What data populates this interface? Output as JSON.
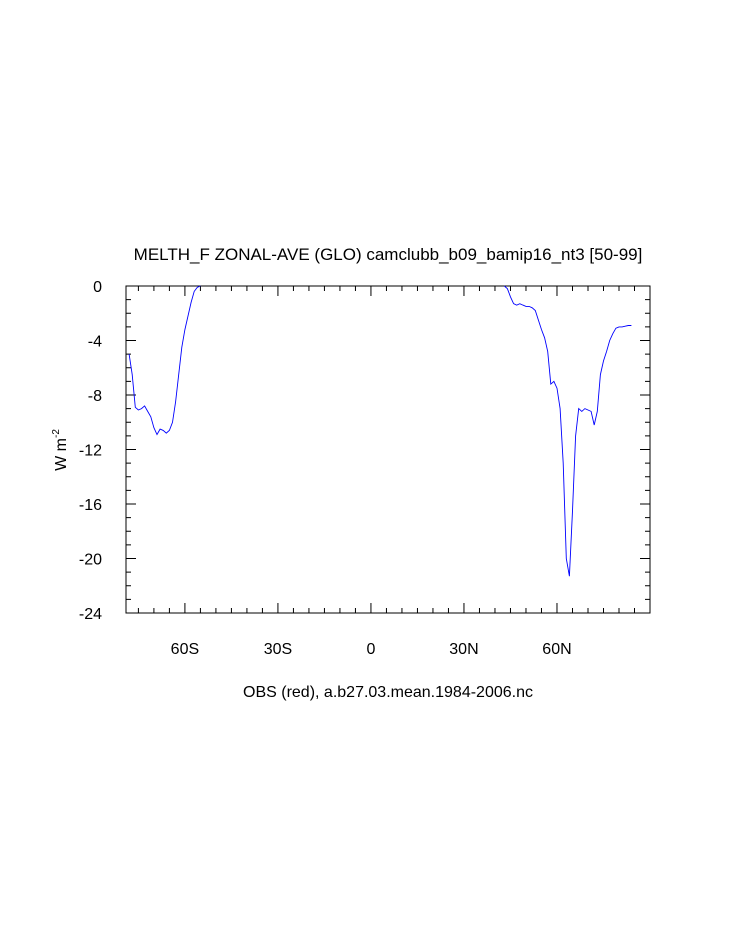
{
  "chart_data": {
    "type": "line",
    "title": "MELTH_F ZONAL-AVE (GLO) camclubb_b09_bamip16_nt3 [50-99]",
    "ylabel_main": "W m",
    "ylabel_sup": "-2",
    "xlabel": "OBS (red), a.b27.03.mean.1984-2006.nc",
    "xlim": [
      -79,
      90
    ],
    "ylim": [
      -24,
      0
    ],
    "grid": false,
    "x_ticks": [
      {
        "value": -60,
        "label": "60S"
      },
      {
        "value": -30,
        "label": "30S"
      },
      {
        "value": 0,
        "label": "0"
      },
      {
        "value": 30,
        "label": "30N"
      },
      {
        "value": 60,
        "label": "60N"
      }
    ],
    "y_ticks": [
      {
        "value": 0,
        "label": "0"
      },
      {
        "value": -4,
        "label": "-4"
      },
      {
        "value": -8,
        "label": "-8"
      },
      {
        "value": -12,
        "label": "-12"
      },
      {
        "value": -16,
        "label": "-16"
      },
      {
        "value": -20,
        "label": "-20"
      },
      {
        "value": -24,
        "label": "-24"
      }
    ],
    "series": [
      {
        "color": "#0000ff",
        "x": [
          -78,
          -77,
          -76,
          -75,
          -74,
          -73,
          -72,
          -71,
          -70,
          -69,
          -68,
          -67,
          -66,
          -65,
          -64,
          -63,
          -62,
          -61,
          -60,
          -59,
          -58,
          -57,
          -56,
          -55,
          -54,
          -53,
          -52,
          -51,
          -50,
          43,
          44,
          45,
          46,
          47,
          48,
          49,
          50,
          51,
          52,
          53,
          54,
          55,
          56,
          57,
          58,
          59,
          60,
          61,
          62,
          63,
          64,
          65,
          66,
          67,
          68,
          69,
          70,
          71,
          72,
          73,
          74,
          75,
          76,
          77,
          78,
          79,
          80,
          81,
          82,
          83,
          84,
          85,
          86,
          87,
          88,
          89,
          90
        ],
        "y": [
          -5.0,
          -6.5,
          -8.9,
          -9.1,
          -9.0,
          -8.8,
          -9.2,
          -9.6,
          -10.4,
          -10.9,
          -10.5,
          -10.6,
          -10.8,
          -10.6,
          -10.0,
          -8.5,
          -6.5,
          -4.5,
          -3.2,
          -2.2,
          -1.2,
          -0.4,
          -0.1,
          0.0,
          null,
          null,
          null,
          null,
          null,
          0.0,
          -0.2,
          -0.8,
          -1.3,
          -1.4,
          -1.3,
          -1.4,
          -1.5,
          -1.5,
          -1.6,
          -1.8,
          -2.5,
          -3.2,
          -3.8,
          -4.8,
          -7.2,
          -7.0,
          -7.5,
          -9.0,
          -13.0,
          -20.0,
          -21.3,
          -16.5,
          -11.0,
          -9.0,
          -9.2,
          -9.0,
          -9.1,
          -9.2,
          -10.2,
          -9.2,
          -6.5,
          -5.5,
          -4.8,
          -4.0,
          -3.5,
          -3.1,
          -3.0,
          -3.0,
          -2.95,
          -2.9,
          -2.9,
          null,
          null,
          null,
          null,
          null,
          null
        ]
      }
    ]
  }
}
